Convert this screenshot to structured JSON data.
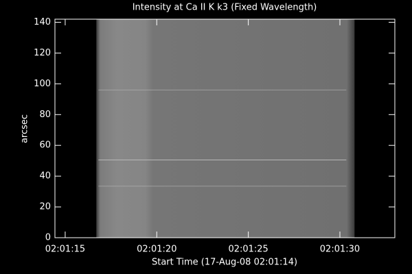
{
  "chart_data": {
    "type": "image",
    "title": "Intensity at Ca II K k3 (Fixed Wavelength)",
    "x_label": "Start Time (17-Aug-08 02:01:14)",
    "y_label": "arcsec",
    "xlim": [
      14.44,
      33.0
    ],
    "xticks": [
      {
        "value": 15,
        "label": "02:01:15"
      },
      {
        "value": 20,
        "label": "02:01:20"
      },
      {
        "value": 25,
        "label": "02:01:25"
      },
      {
        "value": 30,
        "label": "02:01:30"
      }
    ],
    "ylim": [
      0,
      142
    ],
    "yticks": [
      0,
      20,
      40,
      60,
      80,
      100,
      120,
      140
    ],
    "image_x": [
      16.7,
      30.8
    ],
    "bright_rows": [
      96,
      50.5,
      33.5
    ]
  }
}
